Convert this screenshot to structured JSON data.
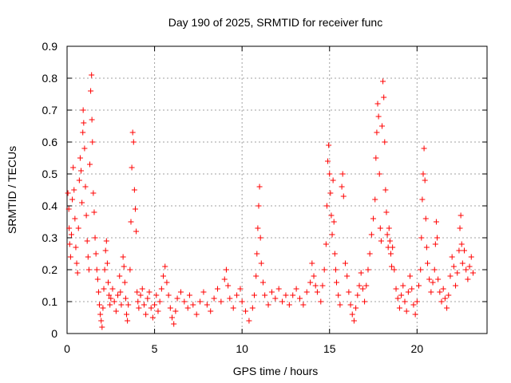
{
  "chart_data": {
    "type": "scatter",
    "title": "Day 190 of 2025, SRMTID for receiver func",
    "xlabel": "GPS time / hours",
    "ylabel": "SRMTID / TECUs",
    "xlim": [
      0,
      24
    ],
    "ylim": [
      0,
      0.9
    ],
    "xticks": [
      0,
      5,
      10,
      15,
      20
    ],
    "xtick_labels": [
      "0",
      "5",
      "10",
      "15",
      "20"
    ],
    "yticks": [
      0,
      0.1,
      0.2,
      0.3,
      0.4,
      0.5,
      0.6,
      0.7,
      0.8,
      0.9
    ],
    "ytick_labels": [
      "0",
      "0.1",
      "0.2",
      "0.3",
      "0.4",
      "0.5",
      "0.6",
      "0.7",
      "0.8",
      "0.9"
    ],
    "grid": true,
    "marker": "+",
    "color": "#ff0000",
    "series": [
      {
        "name": "SRMTID",
        "points": [
          [
            0.05,
            0.44
          ],
          [
            0.1,
            0.39
          ],
          [
            0.12,
            0.33
          ],
          [
            0.15,
            0.28
          ],
          [
            0.2,
            0.24
          ],
          [
            0.25,
            0.31
          ],
          [
            0.3,
            0.42
          ],
          [
            0.35,
            0.52
          ],
          [
            0.4,
            0.45
          ],
          [
            0.45,
            0.36
          ],
          [
            0.5,
            0.27
          ],
          [
            0.55,
            0.22
          ],
          [
            0.6,
            0.19
          ],
          [
            0.65,
            0.33
          ],
          [
            0.7,
            0.48
          ],
          [
            0.75,
            0.55
          ],
          [
            0.8,
            0.51
          ],
          [
            0.85,
            0.41
          ],
          [
            0.9,
            0.63
          ],
          [
            0.92,
            0.7
          ],
          [
            0.95,
            0.66
          ],
          [
            1.0,
            0.58
          ],
          [
            1.05,
            0.46
          ],
          [
            1.1,
            0.37
          ],
          [
            1.15,
            0.29
          ],
          [
            1.2,
            0.24
          ],
          [
            1.25,
            0.2
          ],
          [
            1.3,
            0.53
          ],
          [
            1.35,
            0.76
          ],
          [
            1.4,
            0.81
          ],
          [
            1.42,
            0.67
          ],
          [
            1.45,
            0.6
          ],
          [
            1.5,
            0.44
          ],
          [
            1.55,
            0.38
          ],
          [
            1.6,
            0.3
          ],
          [
            1.65,
            0.25
          ],
          [
            1.7,
            0.2
          ],
          [
            1.75,
            0.17
          ],
          [
            1.8,
            0.13
          ],
          [
            1.85,
            0.09
          ],
          [
            1.9,
            0.06
          ],
          [
            1.95,
            0.04
          ],
          [
            2.0,
            0.02
          ],
          [
            2.05,
            0.08
          ],
          [
            2.1,
            0.14
          ],
          [
            2.15,
            0.2
          ],
          [
            2.2,
            0.26
          ],
          [
            2.25,
            0.29
          ],
          [
            2.3,
            0.22
          ],
          [
            2.35,
            0.16
          ],
          [
            2.4,
            0.12
          ],
          [
            2.45,
            0.09
          ],
          [
            2.5,
            0.11
          ],
          [
            2.6,
            0.14
          ],
          [
            2.7,
            0.1
          ],
          [
            2.8,
            0.07
          ],
          [
            2.9,
            0.12
          ],
          [
            3.0,
            0.18
          ],
          [
            3.05,
            0.13
          ],
          [
            3.1,
            0.09
          ],
          [
            3.2,
            0.24
          ],
          [
            3.25,
            0.21
          ],
          [
            3.3,
            0.16
          ],
          [
            3.35,
            0.11
          ],
          [
            3.4,
            0.06
          ],
          [
            3.45,
            0.04
          ],
          [
            3.5,
            0.09
          ],
          [
            3.6,
            0.2
          ],
          [
            3.65,
            0.35
          ],
          [
            3.7,
            0.52
          ],
          [
            3.75,
            0.63
          ],
          [
            3.8,
            0.6
          ],
          [
            3.85,
            0.45
          ],
          [
            3.9,
            0.39
          ],
          [
            3.95,
            0.32
          ],
          [
            4.0,
            0.13
          ],
          [
            4.05,
            0.1
          ],
          [
            4.1,
            0.08
          ],
          [
            4.2,
            0.12
          ],
          [
            4.3,
            0.14
          ],
          [
            4.4,
            0.09
          ],
          [
            4.5,
            0.06
          ],
          [
            4.6,
            0.11
          ],
          [
            4.7,
            0.13
          ],
          [
            4.8,
            0.08
          ],
          [
            4.9,
            0.05
          ],
          [
            5.0,
            0.09
          ],
          [
            5.1,
            0.12
          ],
          [
            5.2,
            0.07
          ],
          [
            5.3,
            0.1
          ],
          [
            5.4,
            0.14
          ],
          [
            5.5,
            0.18
          ],
          [
            5.6,
            0.21
          ],
          [
            5.7,
            0.16
          ],
          [
            5.8,
            0.12
          ],
          [
            5.9,
            0.08
          ],
          [
            6.0,
            0.05
          ],
          [
            6.1,
            0.03
          ],
          [
            6.2,
            0.07
          ],
          [
            6.3,
            0.11
          ],
          [
            6.5,
            0.13
          ],
          [
            6.7,
            0.1
          ],
          [
            6.9,
            0.08
          ],
          [
            7.0,
            0.12
          ],
          [
            7.2,
            0.09
          ],
          [
            7.4,
            0.06
          ],
          [
            7.6,
            0.1
          ],
          [
            7.8,
            0.13
          ],
          [
            8.0,
            0.09
          ],
          [
            8.2,
            0.07
          ],
          [
            8.4,
            0.11
          ],
          [
            8.6,
            0.14
          ],
          [
            8.8,
            0.1
          ],
          [
            9.0,
            0.17
          ],
          [
            9.1,
            0.2
          ],
          [
            9.2,
            0.15
          ],
          [
            9.3,
            0.11
          ],
          [
            9.5,
            0.08
          ],
          [
            9.7,
            0.12
          ],
          [
            9.9,
            0.14
          ],
          [
            10.0,
            0.1
          ],
          [
            10.2,
            0.07
          ],
          [
            10.4,
            0.04
          ],
          [
            10.6,
            0.08
          ],
          [
            10.7,
            0.12
          ],
          [
            10.8,
            0.18
          ],
          [
            10.85,
            0.25
          ],
          [
            10.9,
            0.33
          ],
          [
            10.95,
            0.4
          ],
          [
            11.0,
            0.46
          ],
          [
            11.05,
            0.3
          ],
          [
            11.1,
            0.22
          ],
          [
            11.2,
            0.16
          ],
          [
            11.3,
            0.12
          ],
          [
            11.5,
            0.09
          ],
          [
            11.7,
            0.13
          ],
          [
            11.9,
            0.11
          ],
          [
            12.1,
            0.14
          ],
          [
            12.3,
            0.1
          ],
          [
            12.5,
            0.12
          ],
          [
            12.7,
            0.09
          ],
          [
            12.9,
            0.12
          ],
          [
            13.1,
            0.14
          ],
          [
            13.3,
            0.11
          ],
          [
            13.5,
            0.09
          ],
          [
            13.7,
            0.13
          ],
          [
            13.9,
            0.16
          ],
          [
            14.0,
            0.22
          ],
          [
            14.1,
            0.18
          ],
          [
            14.2,
            0.15
          ],
          [
            14.3,
            0.13
          ],
          [
            14.5,
            0.1
          ],
          [
            14.6,
            0.15
          ],
          [
            14.7,
            0.2
          ],
          [
            14.8,
            0.28
          ],
          [
            14.85,
            0.4
          ],
          [
            14.9,
            0.54
          ],
          [
            14.95,
            0.59
          ],
          [
            15.0,
            0.5
          ],
          [
            15.05,
            0.44
          ],
          [
            15.1,
            0.37
          ],
          [
            15.15,
            0.31
          ],
          [
            15.2,
            0.48
          ],
          [
            15.25,
            0.35
          ],
          [
            15.3,
            0.25
          ],
          [
            15.35,
            0.2
          ],
          [
            15.4,
            0.16
          ],
          [
            15.5,
            0.12
          ],
          [
            15.6,
            0.09
          ],
          [
            15.7,
            0.46
          ],
          [
            15.75,
            0.5
          ],
          [
            15.8,
            0.43
          ],
          [
            15.9,
            0.22
          ],
          [
            16.0,
            0.18
          ],
          [
            16.1,
            0.13
          ],
          [
            16.2,
            0.09
          ],
          [
            16.3,
            0.06
          ],
          [
            16.4,
            0.04
          ],
          [
            16.5,
            0.08
          ],
          [
            16.6,
            0.12
          ],
          [
            16.7,
            0.15
          ],
          [
            16.8,
            0.19
          ],
          [
            16.9,
            0.14
          ],
          [
            17.0,
            0.1
          ],
          [
            17.1,
            0.15
          ],
          [
            17.2,
            0.2
          ],
          [
            17.3,
            0.25
          ],
          [
            17.4,
            0.31
          ],
          [
            17.5,
            0.36
          ],
          [
            17.6,
            0.42
          ],
          [
            17.65,
            0.55
          ],
          [
            17.7,
            0.63
          ],
          [
            17.75,
            0.72
          ],
          [
            17.8,
            0.68
          ],
          [
            17.85,
            0.5
          ],
          [
            17.9,
            0.33
          ],
          [
            17.95,
            0.29
          ],
          [
            18.0,
            0.65
          ],
          [
            18.05,
            0.79
          ],
          [
            18.1,
            0.74
          ],
          [
            18.15,
            0.6
          ],
          [
            18.2,
            0.45
          ],
          [
            18.25,
            0.38
          ],
          [
            18.3,
            0.31
          ],
          [
            18.35,
            0.27
          ],
          [
            18.4,
            0.33
          ],
          [
            18.45,
            0.29
          ],
          [
            18.5,
            0.25
          ],
          [
            18.55,
            0.21
          ],
          [
            18.6,
            0.27
          ],
          [
            18.7,
            0.2
          ],
          [
            18.8,
            0.14
          ],
          [
            18.9,
            0.11
          ],
          [
            19.0,
            0.08
          ],
          [
            19.1,
            0.12
          ],
          [
            19.2,
            0.15
          ],
          [
            19.3,
            0.1
          ],
          [
            19.4,
            0.07
          ],
          [
            19.5,
            0.13
          ],
          [
            19.6,
            0.18
          ],
          [
            19.7,
            0.14
          ],
          [
            19.8,
            0.09
          ],
          [
            19.9,
            0.06
          ],
          [
            20.0,
            0.1
          ],
          [
            20.1,
            0.15
          ],
          [
            20.2,
            0.2
          ],
          [
            20.25,
            0.3
          ],
          [
            20.3,
            0.42
          ],
          [
            20.35,
            0.5
          ],
          [
            20.4,
            0.58
          ],
          [
            20.45,
            0.48
          ],
          [
            20.5,
            0.36
          ],
          [
            20.55,
            0.27
          ],
          [
            20.6,
            0.22
          ],
          [
            20.7,
            0.17
          ],
          [
            20.8,
            0.13
          ],
          [
            20.9,
            0.16
          ],
          [
            21.0,
            0.2
          ],
          [
            21.05,
            0.28
          ],
          [
            21.1,
            0.35
          ],
          [
            21.15,
            0.3
          ],
          [
            21.2,
            0.17
          ],
          [
            21.3,
            0.13
          ],
          [
            21.4,
            0.1
          ],
          [
            21.5,
            0.14
          ],
          [
            21.6,
            0.11
          ],
          [
            21.7,
            0.08
          ],
          [
            21.8,
            0.12
          ],
          [
            21.9,
            0.18
          ],
          [
            22.0,
            0.24
          ],
          [
            22.1,
            0.21
          ],
          [
            22.2,
            0.15
          ],
          [
            22.3,
            0.19
          ],
          [
            22.4,
            0.26
          ],
          [
            22.45,
            0.33
          ],
          [
            22.5,
            0.37
          ],
          [
            22.55,
            0.28
          ],
          [
            22.6,
            0.22
          ],
          [
            22.7,
            0.26
          ],
          [
            22.8,
            0.2
          ],
          [
            22.9,
            0.17
          ],
          [
            23.0,
            0.21
          ],
          [
            23.1,
            0.24
          ],
          [
            23.2,
            0.19
          ]
        ]
      }
    ]
  }
}
